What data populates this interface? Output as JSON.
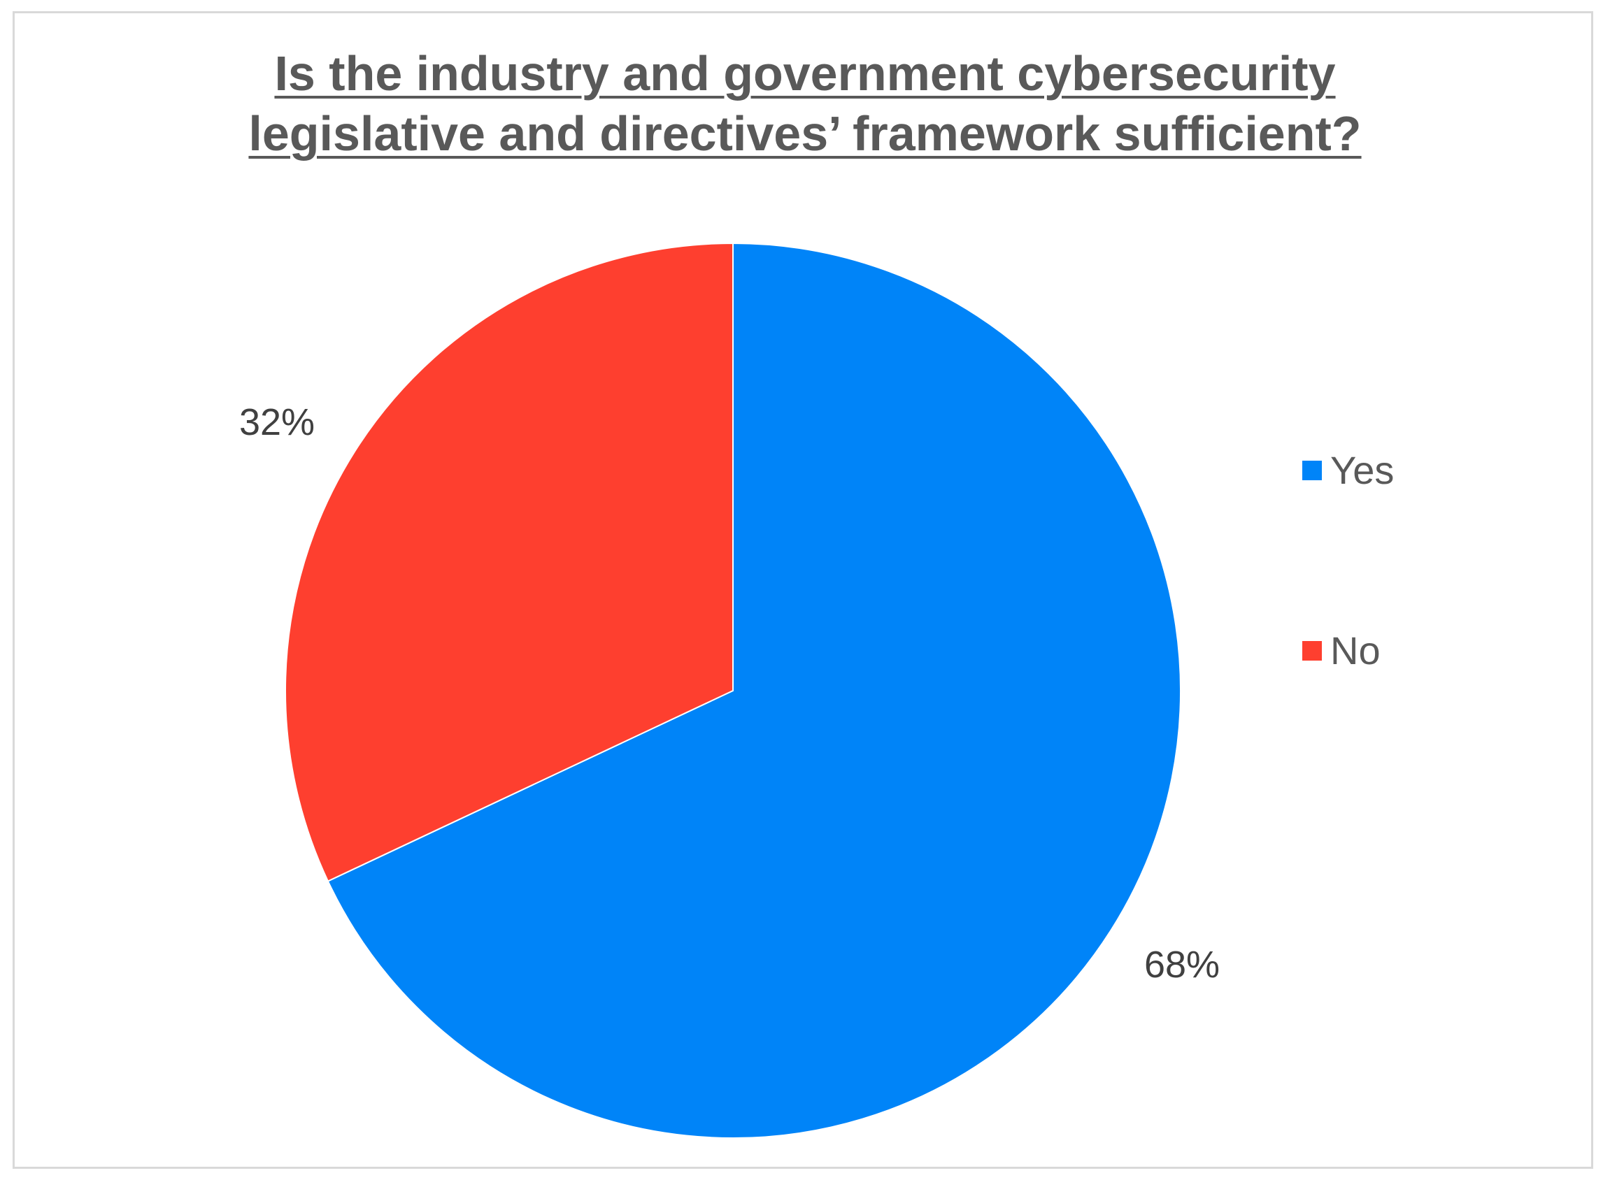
{
  "chart_data": {
    "type": "pie",
    "title_lines": [
      "Is the industry and government cybersecurity",
      "legislative and directives’ framework sufficient?"
    ],
    "categories": [
      "Yes",
      "No"
    ],
    "values": [
      68,
      32
    ],
    "value_labels": [
      "68%",
      "32%"
    ],
    "colors": [
      "#0084f8",
      "#fe3f2f"
    ],
    "legend_position": "right",
    "start_angle_deg": 0,
    "direction": "clockwise"
  }
}
